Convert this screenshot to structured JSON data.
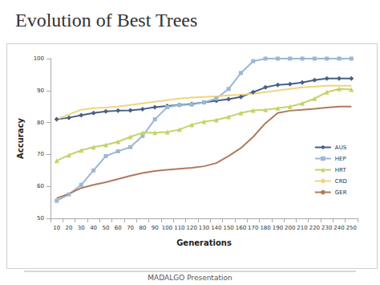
{
  "chart_data": {
    "type": "line",
    "title": "Evolution of Best Trees",
    "x_label": "Generations",
    "y_label": "Accuracy",
    "annotations": [
      "MADALGO Presentation"
    ],
    "categories": [
      "10",
      "20",
      "30",
      "40",
      "50",
      "60",
      "70",
      "80",
      "90",
      "100",
      "110",
      "120",
      "130",
      "140",
      "150",
      "160",
      "170",
      "180",
      "190",
      "200",
      "210",
      "220",
      "230",
      "240",
      "250"
    ],
    "series": [
      {
        "name": "AUS",
        "color": "#4a5f86",
        "marker": "diamond",
        "values": [
          81,
          81.5,
          82.3,
          83,
          83.5,
          83.7,
          83.8,
          84.2,
          84.8,
          85.2,
          85.5,
          85.8,
          86.3,
          86.8,
          87.3,
          88,
          89.5,
          91,
          91.8,
          92,
          92.5,
          93.3,
          93.8,
          93.8,
          93.8
        ]
      },
      {
        "name": "HEP",
        "color": "#9bb7d4",
        "marker": "square",
        "values": [
          55.5,
          57.5,
          60.5,
          65,
          69.5,
          71,
          72.3,
          75.8,
          81,
          84.8,
          85.5,
          85.6,
          86.3,
          87.5,
          90.5,
          95.5,
          99.2,
          100,
          100,
          100,
          100,
          100,
          100,
          100,
          100
        ]
      },
      {
        "name": "HRT",
        "color": "#c3d46a",
        "marker": "triangle",
        "values": [
          68,
          69.8,
          71.3,
          72.3,
          73,
          74,
          75.5,
          76.8,
          76.8,
          77,
          77.8,
          79.3,
          80.3,
          80.8,
          81.8,
          83,
          83.8,
          84,
          84.5,
          85,
          86,
          87.5,
          89.5,
          90.5,
          90.3
        ]
      },
      {
        "name": "CRD",
        "color": "#f0d57c",
        "marker": "none",
        "values": [
          81,
          82.5,
          84,
          84.5,
          84.7,
          85,
          85.5,
          86,
          86.5,
          87,
          87.5,
          87.8,
          88,
          88.2,
          88.5,
          88.7,
          89,
          89.5,
          90,
          90.5,
          91,
          91.2,
          91.5,
          91.5,
          91.5
        ]
      },
      {
        "name": "GER",
        "color": "#b07a5e",
        "marker": "none",
        "values": [
          56.3,
          57.7,
          59.5,
          60.5,
          61.3,
          62.3,
          63.3,
          64.2,
          64.8,
          65.2,
          65.5,
          65.8,
          66.3,
          67.3,
          69.5,
          72,
          75.5,
          79.8,
          83,
          83.7,
          84,
          84.3,
          84.7,
          85,
          85
        ]
      }
    ],
    "ylim": [
      50,
      100
    ],
    "yticks": [
      50,
      60,
      70,
      80,
      90,
      100
    ],
    "grid": false,
    "legend": "right"
  }
}
